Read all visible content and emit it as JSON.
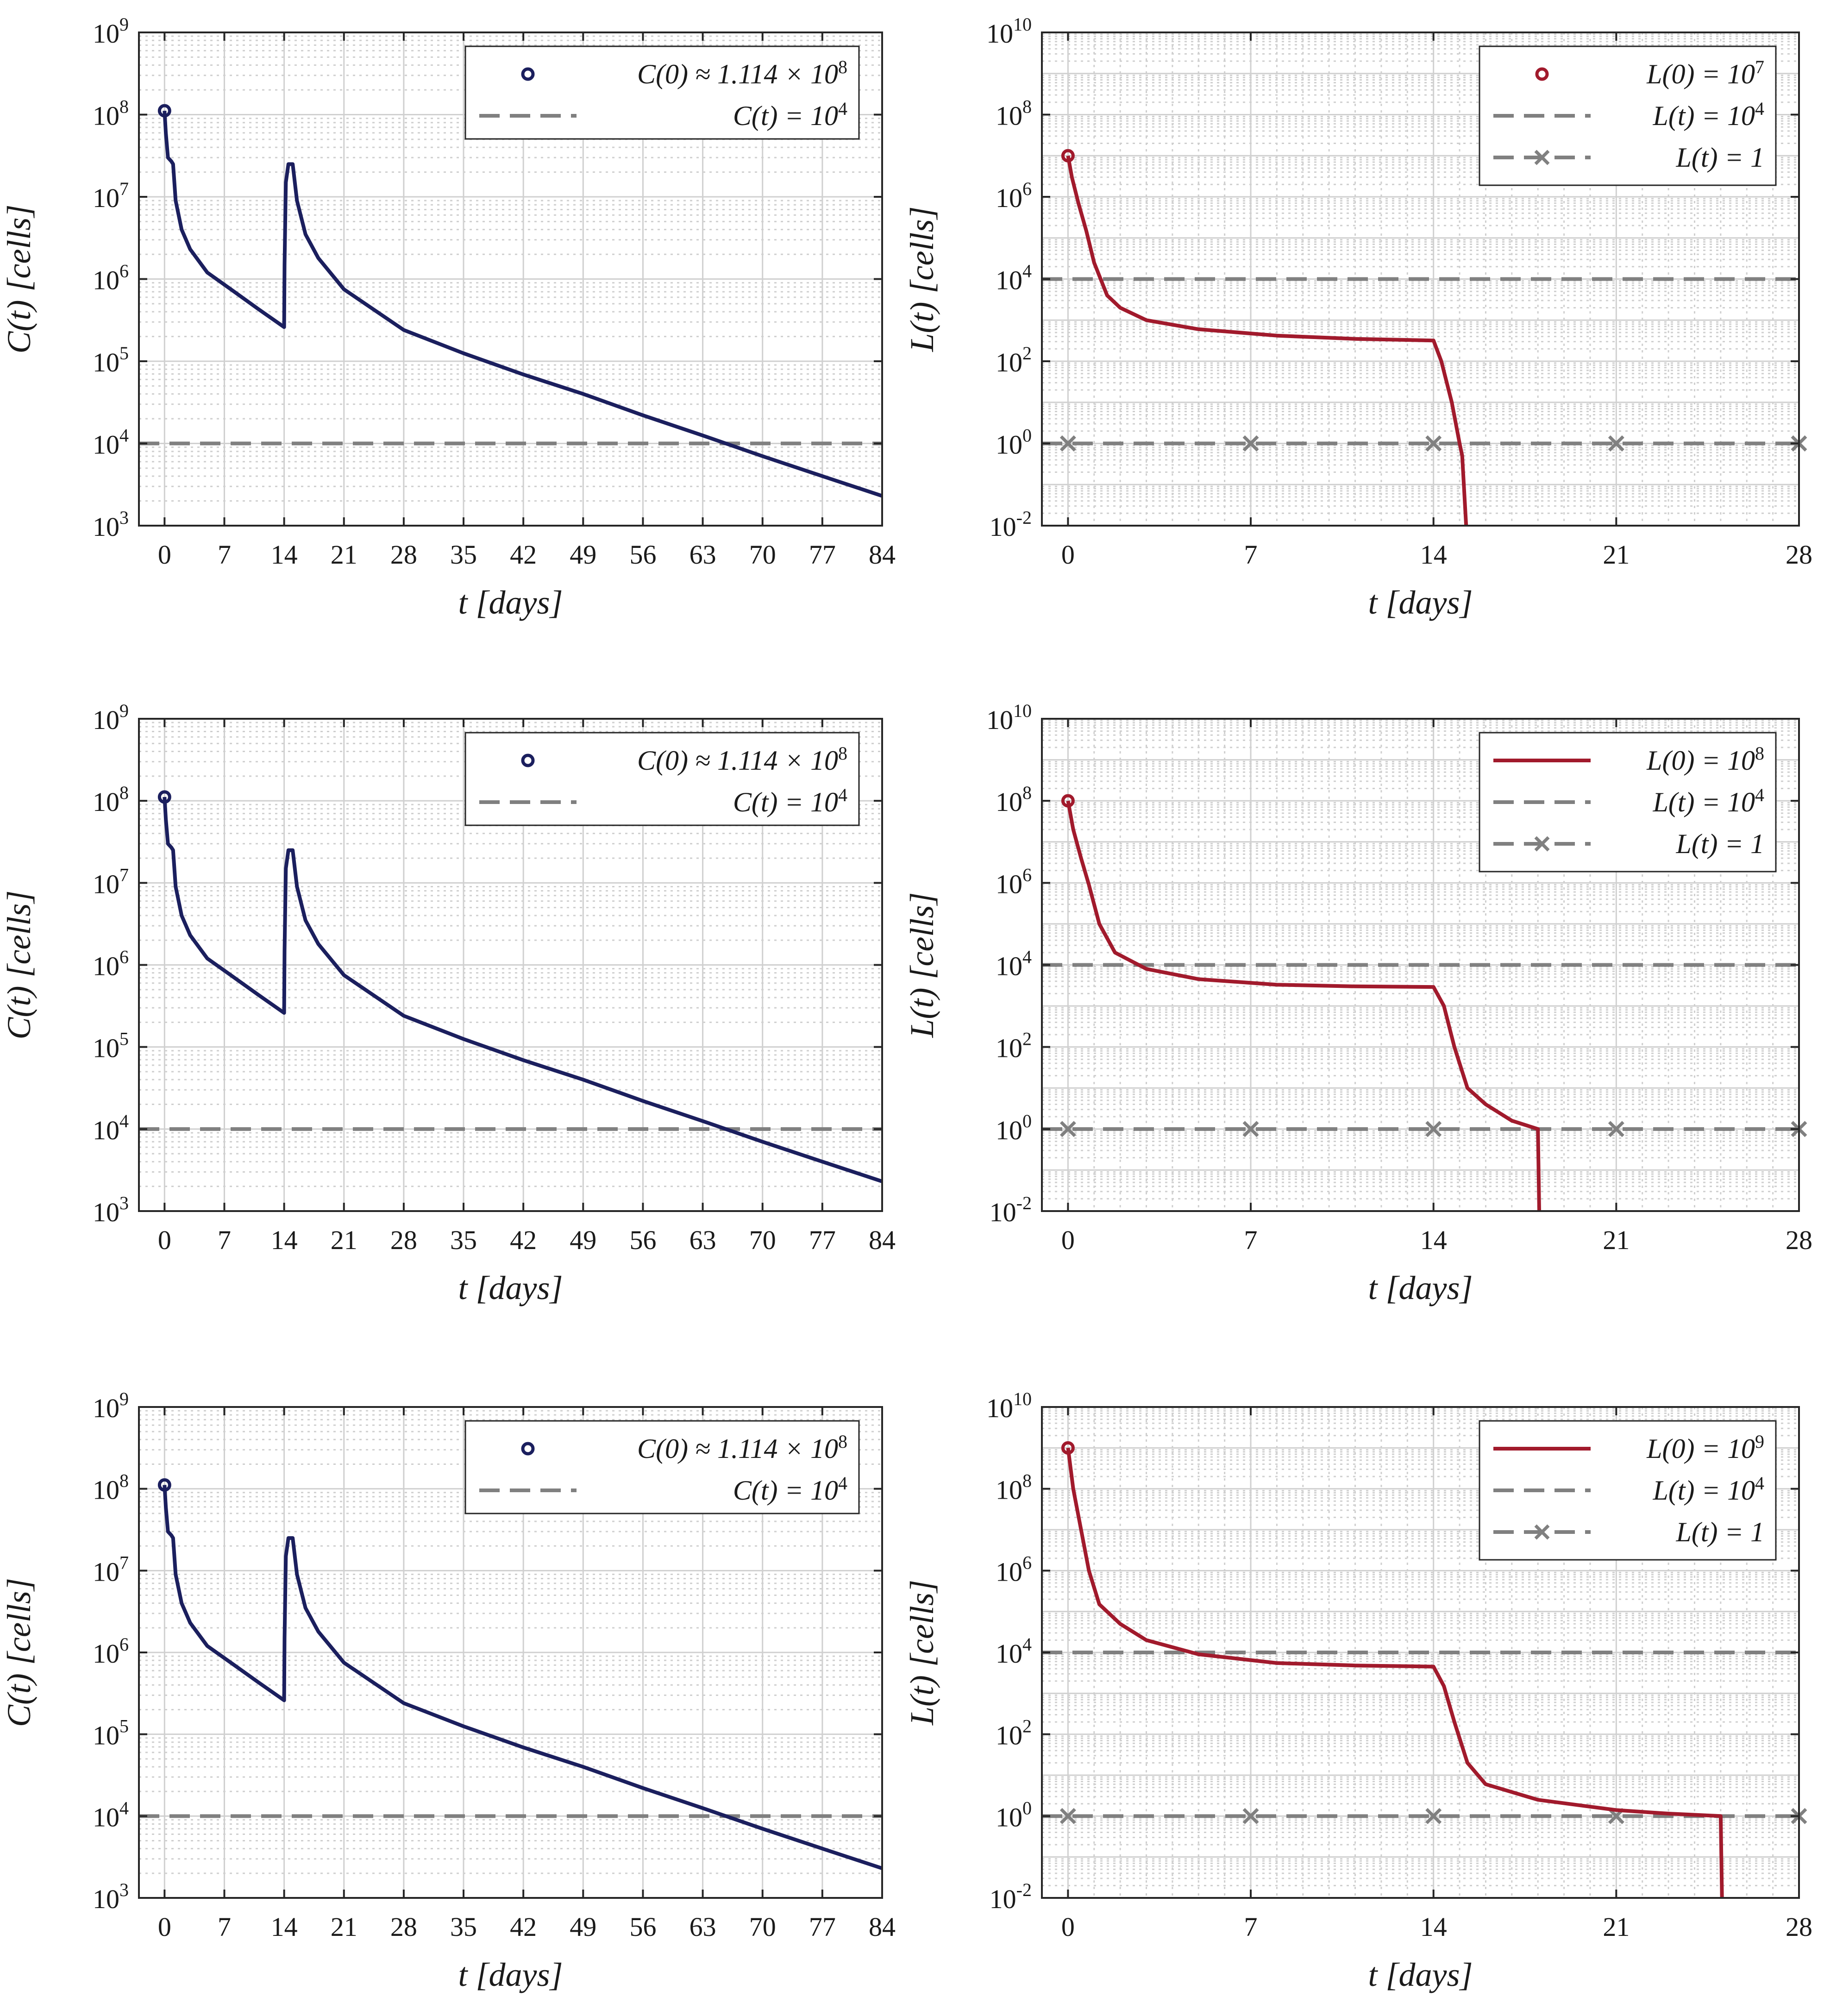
{
  "panel_labels": {
    "C_ylabel": "C(t) [cells]",
    "L_ylabel": "L(t) [cells]",
    "xlabel": "t [days]"
  },
  "colors": {
    "C_curve": "#1b1f5e",
    "L_curve": "#a11a2c",
    "threshold": "#808080",
    "grid_major": "#d0d0d0",
    "grid_minor": "#cfcfcf",
    "axes": "#262626"
  },
  "chart_data": [
    {
      "id": "C1",
      "type": "line",
      "yscale": "log",
      "xlabel": "t [days]",
      "ylabel": "C(t) [cells]",
      "xlim": [
        -3,
        84
      ],
      "ylim": [
        1000,
        1000000000
      ],
      "xticks": [
        0,
        7,
        14,
        21,
        28,
        35,
        42,
        49,
        56,
        63,
        70,
        77,
        84
      ],
      "ytick_exponents": [
        3,
        4,
        5,
        6,
        7,
        8,
        9
      ],
      "initial_point": {
        "t": 0,
        "value": 111400000
      },
      "threshold": 10000,
      "legend": [
        "C(0) ≈ 1.114 × 10^8",
        "C(t) = 10^4"
      ],
      "series": [
        {
          "name": "C(t)",
          "points": [
            [
              0,
              111400000
            ],
            [
              0.15,
              60000000
            ],
            [
              0.4,
              30000000
            ],
            [
              0.8,
              27000000
            ],
            [
              1.0,
              25000000
            ],
            [
              1.3,
              9000000
            ],
            [
              2,
              4000000
            ],
            [
              3,
              2300000
            ],
            [
              5,
              1200000
            ],
            [
              8,
              720000
            ],
            [
              11,
              430000
            ],
            [
              14,
              260000
            ],
            [
              14.05,
              1500000
            ],
            [
              14.2,
              15000000
            ],
            [
              14.5,
              25000000
            ],
            [
              15,
              25000000
            ],
            [
              15.5,
              9000000
            ],
            [
              16.5,
              3500000
            ],
            [
              18,
              1800000
            ],
            [
              21,
              750000
            ],
            [
              28,
              240000
            ],
            [
              35,
              125000
            ],
            [
              42,
              69000
            ],
            [
              49,
              40000
            ],
            [
              56,
              22000
            ],
            [
              63,
              12500
            ],
            [
              70,
              7000
            ],
            [
              77,
              4000
            ],
            [
              84,
              2300
            ]
          ]
        }
      ]
    },
    {
      "id": "L1",
      "type": "line",
      "yscale": "log",
      "xlabel": "t [days]",
      "ylabel": "L(t) [cells]",
      "xlim": [
        -1,
        28
      ],
      "ylim": [
        0.01,
        10000000000
      ],
      "xticks": [
        0,
        7,
        14,
        21,
        28
      ],
      "ytick_exponents": [
        -2,
        0,
        2,
        4,
        6,
        8,
        10
      ],
      "initial_point": {
        "t": 0,
        "value": 10000000
      },
      "threshold": 10000,
      "marker_line": 1,
      "marker_ts": [
        0,
        7,
        14,
        21,
        28
      ],
      "legend": [
        "L(0) = 10^7",
        "L(t) = 10^4",
        "L(t) = 1"
      ],
      "legend_first": "marker",
      "series": [
        {
          "name": "L(t)",
          "points": [
            [
              0,
              10000000
            ],
            [
              0.15,
              3000000
            ],
            [
              0.4,
              700000
            ],
            [
              0.7,
              150000
            ],
            [
              1,
              25000
            ],
            [
              1.5,
              4000
            ],
            [
              2,
              2000
            ],
            [
              3,
              1000
            ],
            [
              5,
              600
            ],
            [
              8,
              420
            ],
            [
              11,
              350
            ],
            [
              14,
              320
            ],
            [
              14.3,
              100
            ],
            [
              14.7,
              10
            ],
            [
              15,
              1
            ],
            [
              15.1,
              0.5
            ],
            [
              15.25,
              0.01
            ]
          ]
        }
      ]
    },
    {
      "id": "C2",
      "type": "line",
      "yscale": "log",
      "xlabel": "t [days]",
      "ylabel": "C(t) [cells]",
      "xlim": [
        -3,
        84
      ],
      "ylim": [
        1000,
        1000000000
      ],
      "xticks": [
        0,
        7,
        14,
        21,
        28,
        35,
        42,
        49,
        56,
        63,
        70,
        77,
        84
      ],
      "ytick_exponents": [
        3,
        4,
        5,
        6,
        7,
        8,
        9
      ],
      "initial_point": {
        "t": 0,
        "value": 111400000
      },
      "threshold": 10000,
      "legend": [
        "C(0) ≈ 1.114 × 10^8",
        "C(t) = 10^4"
      ],
      "series": [
        {
          "name": "C(t)",
          "points": [
            [
              0,
              111400000
            ],
            [
              0.15,
              60000000
            ],
            [
              0.4,
              30000000
            ],
            [
              0.8,
              27000000
            ],
            [
              1.0,
              25000000
            ],
            [
              1.3,
              9000000
            ],
            [
              2,
              4000000
            ],
            [
              3,
              2300000
            ],
            [
              5,
              1200000
            ],
            [
              8,
              720000
            ],
            [
              11,
              430000
            ],
            [
              14,
              260000
            ],
            [
              14.05,
              1500000
            ],
            [
              14.2,
              15000000
            ],
            [
              14.5,
              25000000
            ],
            [
              15,
              25000000
            ],
            [
              15.5,
              9000000
            ],
            [
              16.5,
              3500000
            ],
            [
              18,
              1800000
            ],
            [
              21,
              750000
            ],
            [
              28,
              240000
            ],
            [
              35,
              125000
            ],
            [
              42,
              69000
            ],
            [
              49,
              40000
            ],
            [
              56,
              22000
            ],
            [
              63,
              12500
            ],
            [
              70,
              7000
            ],
            [
              77,
              4000
            ],
            [
              84,
              2300
            ]
          ]
        }
      ]
    },
    {
      "id": "L2",
      "type": "line",
      "yscale": "log",
      "xlabel": "t [days]",
      "ylabel": "L(t) [cells]",
      "xlim": [
        -1,
        28
      ],
      "ylim": [
        0.01,
        10000000000
      ],
      "xticks": [
        0,
        7,
        14,
        21,
        28
      ],
      "ytick_exponents": [
        -2,
        0,
        2,
        4,
        6,
        8,
        10
      ],
      "initial_point": {
        "t": 0,
        "value": 100000000
      },
      "threshold": 10000,
      "marker_line": 1,
      "marker_ts": [
        0,
        7,
        14,
        21,
        28
      ],
      "legend": [
        "L(0) = 10^8",
        "L(t) = 10^4",
        "L(t) = 1"
      ],
      "legend_first": "line",
      "series": [
        {
          "name": "L(t)",
          "points": [
            [
              0,
              100000000
            ],
            [
              0.2,
              20000000
            ],
            [
              0.5,
              4000000
            ],
            [
              0.8,
              900000
            ],
            [
              1.2,
              100000
            ],
            [
              1.8,
              20000
            ],
            [
              3,
              8000
            ],
            [
              5,
              4500
            ],
            [
              8,
              3300
            ],
            [
              11,
              3000
            ],
            [
              14,
              2900
            ],
            [
              14.4,
              1000
            ],
            [
              14.8,
              100
            ],
            [
              15.3,
              10
            ],
            [
              16,
              4
            ],
            [
              17,
              1.6
            ],
            [
              18,
              1
            ],
            [
              18.05,
              0.01
            ]
          ]
        }
      ]
    },
    {
      "id": "C3",
      "type": "line",
      "yscale": "log",
      "xlabel": "t [days]",
      "ylabel": "C(t) [cells]",
      "xlim": [
        -3,
        84
      ],
      "ylim": [
        1000,
        1000000000
      ],
      "xticks": [
        0,
        7,
        14,
        21,
        28,
        35,
        42,
        49,
        56,
        63,
        70,
        77,
        84
      ],
      "ytick_exponents": [
        3,
        4,
        5,
        6,
        7,
        8,
        9
      ],
      "initial_point": {
        "t": 0,
        "value": 111400000
      },
      "threshold": 10000,
      "legend": [
        "C(0) ≈ 1.114 × 10^8",
        "C(t) = 10^4"
      ],
      "series": [
        {
          "name": "C(t)",
          "points": [
            [
              0,
              111400000
            ],
            [
              0.15,
              60000000
            ],
            [
              0.4,
              30000000
            ],
            [
              0.8,
              27000000
            ],
            [
              1.0,
              25000000
            ],
            [
              1.3,
              9000000
            ],
            [
              2,
              4000000
            ],
            [
              3,
              2300000
            ],
            [
              5,
              1200000
            ],
            [
              8,
              720000
            ],
            [
              11,
              430000
            ],
            [
              14,
              260000
            ],
            [
              14.05,
              1500000
            ],
            [
              14.2,
              15000000
            ],
            [
              14.5,
              25000000
            ],
            [
              15,
              25000000
            ],
            [
              15.5,
              9000000
            ],
            [
              16.5,
              3500000
            ],
            [
              18,
              1800000
            ],
            [
              21,
              750000
            ],
            [
              28,
              240000
            ],
            [
              35,
              125000
            ],
            [
              42,
              69000
            ],
            [
              49,
              40000
            ],
            [
              56,
              22000
            ],
            [
              63,
              12500
            ],
            [
              70,
              7000
            ],
            [
              77,
              4000
            ],
            [
              84,
              2300
            ]
          ]
        }
      ]
    },
    {
      "id": "L3",
      "type": "line",
      "yscale": "log",
      "xlabel": "t [days]",
      "ylabel": "L(t) [cells]",
      "xlim": [
        -1,
        28
      ],
      "ylim": [
        0.01,
        10000000000
      ],
      "xticks": [
        0,
        7,
        14,
        21,
        28
      ],
      "ytick_exponents": [
        -2,
        0,
        2,
        4,
        6,
        8,
        10
      ],
      "initial_point": {
        "t": 0,
        "value": 1000000000
      },
      "threshold": 10000,
      "marker_line": 1,
      "marker_ts": [
        0,
        7,
        14,
        21,
        28
      ],
      "legend": [
        "L(0) = 10^9",
        "L(t) = 10^4",
        "L(t) = 1"
      ],
      "legend_first": "line",
      "series": [
        {
          "name": "L(t)",
          "points": [
            [
              0,
              1000000000
            ],
            [
              0.2,
              100000000
            ],
            [
              0.5,
              10000000
            ],
            [
              0.8,
              1000000
            ],
            [
              1.2,
              150000
            ],
            [
              2,
              50000
            ],
            [
              3,
              20000
            ],
            [
              5,
              9000
            ],
            [
              8,
              5500
            ],
            [
              11,
              4800
            ],
            [
              14,
              4500
            ],
            [
              14.4,
              1500
            ],
            [
              14.8,
              200
            ],
            [
              15.3,
              20
            ],
            [
              16,
              6
            ],
            [
              18,
              2.5
            ],
            [
              21,
              1.4
            ],
            [
              23,
              1.15
            ],
            [
              25,
              1
            ],
            [
              25.05,
              0.01
            ]
          ]
        }
      ]
    }
  ]
}
